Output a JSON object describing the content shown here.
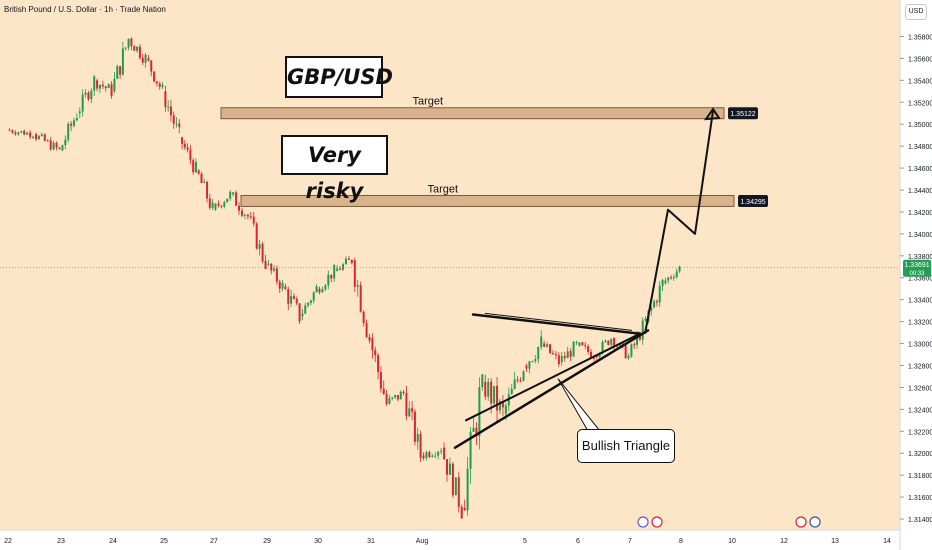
{
  "header": {
    "symbol_title": "British Pound / U.S. Dollar · 1h · Trade Nation",
    "currency_button": "USD"
  },
  "annotations": {
    "title": "GBP/USD",
    "risk_note": "Very risky",
    "pattern": "Bullish Triangle",
    "target_label": "Target"
  },
  "colors": {
    "background": "#fde5c8",
    "up_candle": "#1f9c4a",
    "down_candle": "#d8262e",
    "zone_fill": "#d9b38c",
    "last_price_badge": "#22a052"
  },
  "chart_data": {
    "type": "candlestick",
    "ylim": [
      1.313,
      1.3595
    ],
    "y_ticks": [
      "1.35800",
      "1.35600",
      "1.35400",
      "1.35200",
      "1.35000",
      "1.34800",
      "1.34600",
      "1.34400",
      "1.34200",
      "1.34000",
      "1.33800",
      "1.33600",
      "1.33400",
      "1.33200",
      "1.33000",
      "1.32800",
      "1.32600",
      "1.32400",
      "1.32200",
      "1.32000",
      "1.31800",
      "1.31600",
      "1.31400"
    ],
    "x_ticks": [
      "22",
      "23",
      "24",
      "25",
      "27",
      "29",
      "30",
      "31",
      "Aug",
      "5",
      "6",
      "7",
      "8",
      "10",
      "12",
      "13",
      "14"
    ],
    "last_price": "1.33691",
    "countdown": "00:33",
    "target_zones": [
      {
        "label": "Target",
        "price": "1.35122",
        "low": 1.3505,
        "high": 1.3515
      },
      {
        "label": "Target",
        "price": "1.34295",
        "low": 1.3425,
        "high": 1.3435
      }
    ],
    "price_path": [
      {
        "x": "22",
        "o": 1.3495,
        "h": 1.3502,
        "l": 1.3483,
        "c": 1.3491
      },
      {
        "x": "22",
        "o": 1.3491,
        "h": 1.3498,
        "l": 1.347,
        "c": 1.3476
      },
      {
        "x": "23",
        "o": 1.3476,
        "h": 1.3515,
        "l": 1.3468,
        "c": 1.351
      },
      {
        "x": "23",
        "o": 1.351,
        "h": 1.3545,
        "l": 1.3502,
        "c": 1.354
      },
      {
        "x": "23",
        "o": 1.354,
        "h": 1.3556,
        "l": 1.3522,
        "c": 1.353
      },
      {
        "x": "24",
        "o": 1.353,
        "h": 1.3585,
        "l": 1.3525,
        "c": 1.3578
      },
      {
        "x": "24",
        "o": 1.3578,
        "h": 1.359,
        "l": 1.355,
        "c": 1.356
      },
      {
        "x": "24",
        "o": 1.356,
        "h": 1.3566,
        "l": 1.3525,
        "c": 1.353
      },
      {
        "x": "25",
        "o": 1.353,
        "h": 1.3535,
        "l": 1.348,
        "c": 1.3488
      },
      {
        "x": "25",
        "o": 1.3488,
        "h": 1.3495,
        "l": 1.3452,
        "c": 1.3458
      },
      {
        "x": "25",
        "o": 1.3458,
        "h": 1.3462,
        "l": 1.3416,
        "c": 1.3422
      },
      {
        "x": "27",
        "o": 1.3422,
        "h": 1.3442,
        "l": 1.3414,
        "c": 1.3436
      },
      {
        "x": "27",
        "o": 1.3436,
        "h": 1.3445,
        "l": 1.3408,
        "c": 1.3416
      },
      {
        "x": "27",
        "o": 1.3416,
        "h": 1.342,
        "l": 1.3368,
        "c": 1.3372
      },
      {
        "x": "29",
        "o": 1.3372,
        "h": 1.338,
        "l": 1.334,
        "c": 1.3352
      },
      {
        "x": "29",
        "o": 1.3352,
        "h": 1.3368,
        "l": 1.3315,
        "c": 1.3325
      },
      {
        "x": "29",
        "o": 1.3325,
        "h": 1.3355,
        "l": 1.3318,
        "c": 1.335
      },
      {
        "x": "30",
        "o": 1.335,
        "h": 1.3372,
        "l": 1.3338,
        "c": 1.3366
      },
      {
        "x": "30",
        "o": 1.3366,
        "h": 1.3385,
        "l": 1.3355,
        "c": 1.3376
      },
      {
        "x": "30",
        "o": 1.3376,
        "h": 1.338,
        "l": 1.33,
        "c": 1.3305
      },
      {
        "x": "31",
        "o": 1.3305,
        "h": 1.331,
        "l": 1.3238,
        "c": 1.3245
      },
      {
        "x": "31",
        "o": 1.3245,
        "h": 1.3262,
        "l": 1.3228,
        "c": 1.3255
      },
      {
        "x": "31",
        "o": 1.3255,
        "h": 1.3262,
        "l": 1.3192,
        "c": 1.3198
      },
      {
        "x": "Aug",
        "o": 1.3198,
        "h": 1.3212,
        "l": 1.3182,
        "c": 1.3205
      },
      {
        "x": "Aug",
        "o": 1.3205,
        "h": 1.321,
        "l": 1.314,
        "c": 1.315
      },
      {
        "x": "Aug",
        "o": 1.315,
        "h": 1.3272,
        "l": 1.3143,
        "c": 1.3265
      },
      {
        "x": "Aug",
        "o": 1.3265,
        "h": 1.331,
        "l": 1.3228,
        "c": 1.3236
      },
      {
        "x": "Aug",
        "o": 1.3236,
        "h": 1.329,
        "l": 1.323,
        "c": 1.328
      },
      {
        "x": "5",
        "o": 1.328,
        "h": 1.3325,
        "l": 1.3272,
        "c": 1.33
      },
      {
        "x": "5",
        "o": 1.33,
        "h": 1.331,
        "l": 1.3275,
        "c": 1.3283
      },
      {
        "x": "5",
        "o": 1.3283,
        "h": 1.3305,
        "l": 1.327,
        "c": 1.3298
      },
      {
        "x": "6",
        "o": 1.3298,
        "h": 1.3308,
        "l": 1.3278,
        "c": 1.329
      },
      {
        "x": "6",
        "o": 1.329,
        "h": 1.3312,
        "l": 1.3284,
        "c": 1.3305
      },
      {
        "x": "6",
        "o": 1.3305,
        "h": 1.331,
        "l": 1.3282,
        "c": 1.3288
      },
      {
        "x": "7",
        "o": 1.3288,
        "h": 1.3325,
        "l": 1.3284,
        "c": 1.332
      },
      {
        "x": "7",
        "o": 1.332,
        "h": 1.3362,
        "l": 1.3315,
        "c": 1.3355
      },
      {
        "x": "7",
        "o": 1.3355,
        "h": 1.3372,
        "l": 1.3345,
        "c": 1.3369
      }
    ],
    "triangle": {
      "upper_line": [
        {
          "x": "Aug",
          "y": 1.3324
        },
        {
          "x": "7",
          "y": 1.3309
        }
      ],
      "lower_line": [
        {
          "x": "Aug",
          "y": 1.3205
        },
        {
          "x": "7",
          "y": 1.3312
        }
      ],
      "inner_line": [
        {
          "x": "Aug",
          "y": 1.323
        },
        {
          "x": "7",
          "y": 1.3309
        }
      ]
    },
    "projection_path": [
      {
        "x": "7",
        "y": 1.3309
      },
      {
        "x": "8",
        "y": 1.3422
      },
      {
        "x": "8",
        "y": 1.34
      },
      {
        "x": "10",
        "y": 1.3512
      }
    ]
  }
}
